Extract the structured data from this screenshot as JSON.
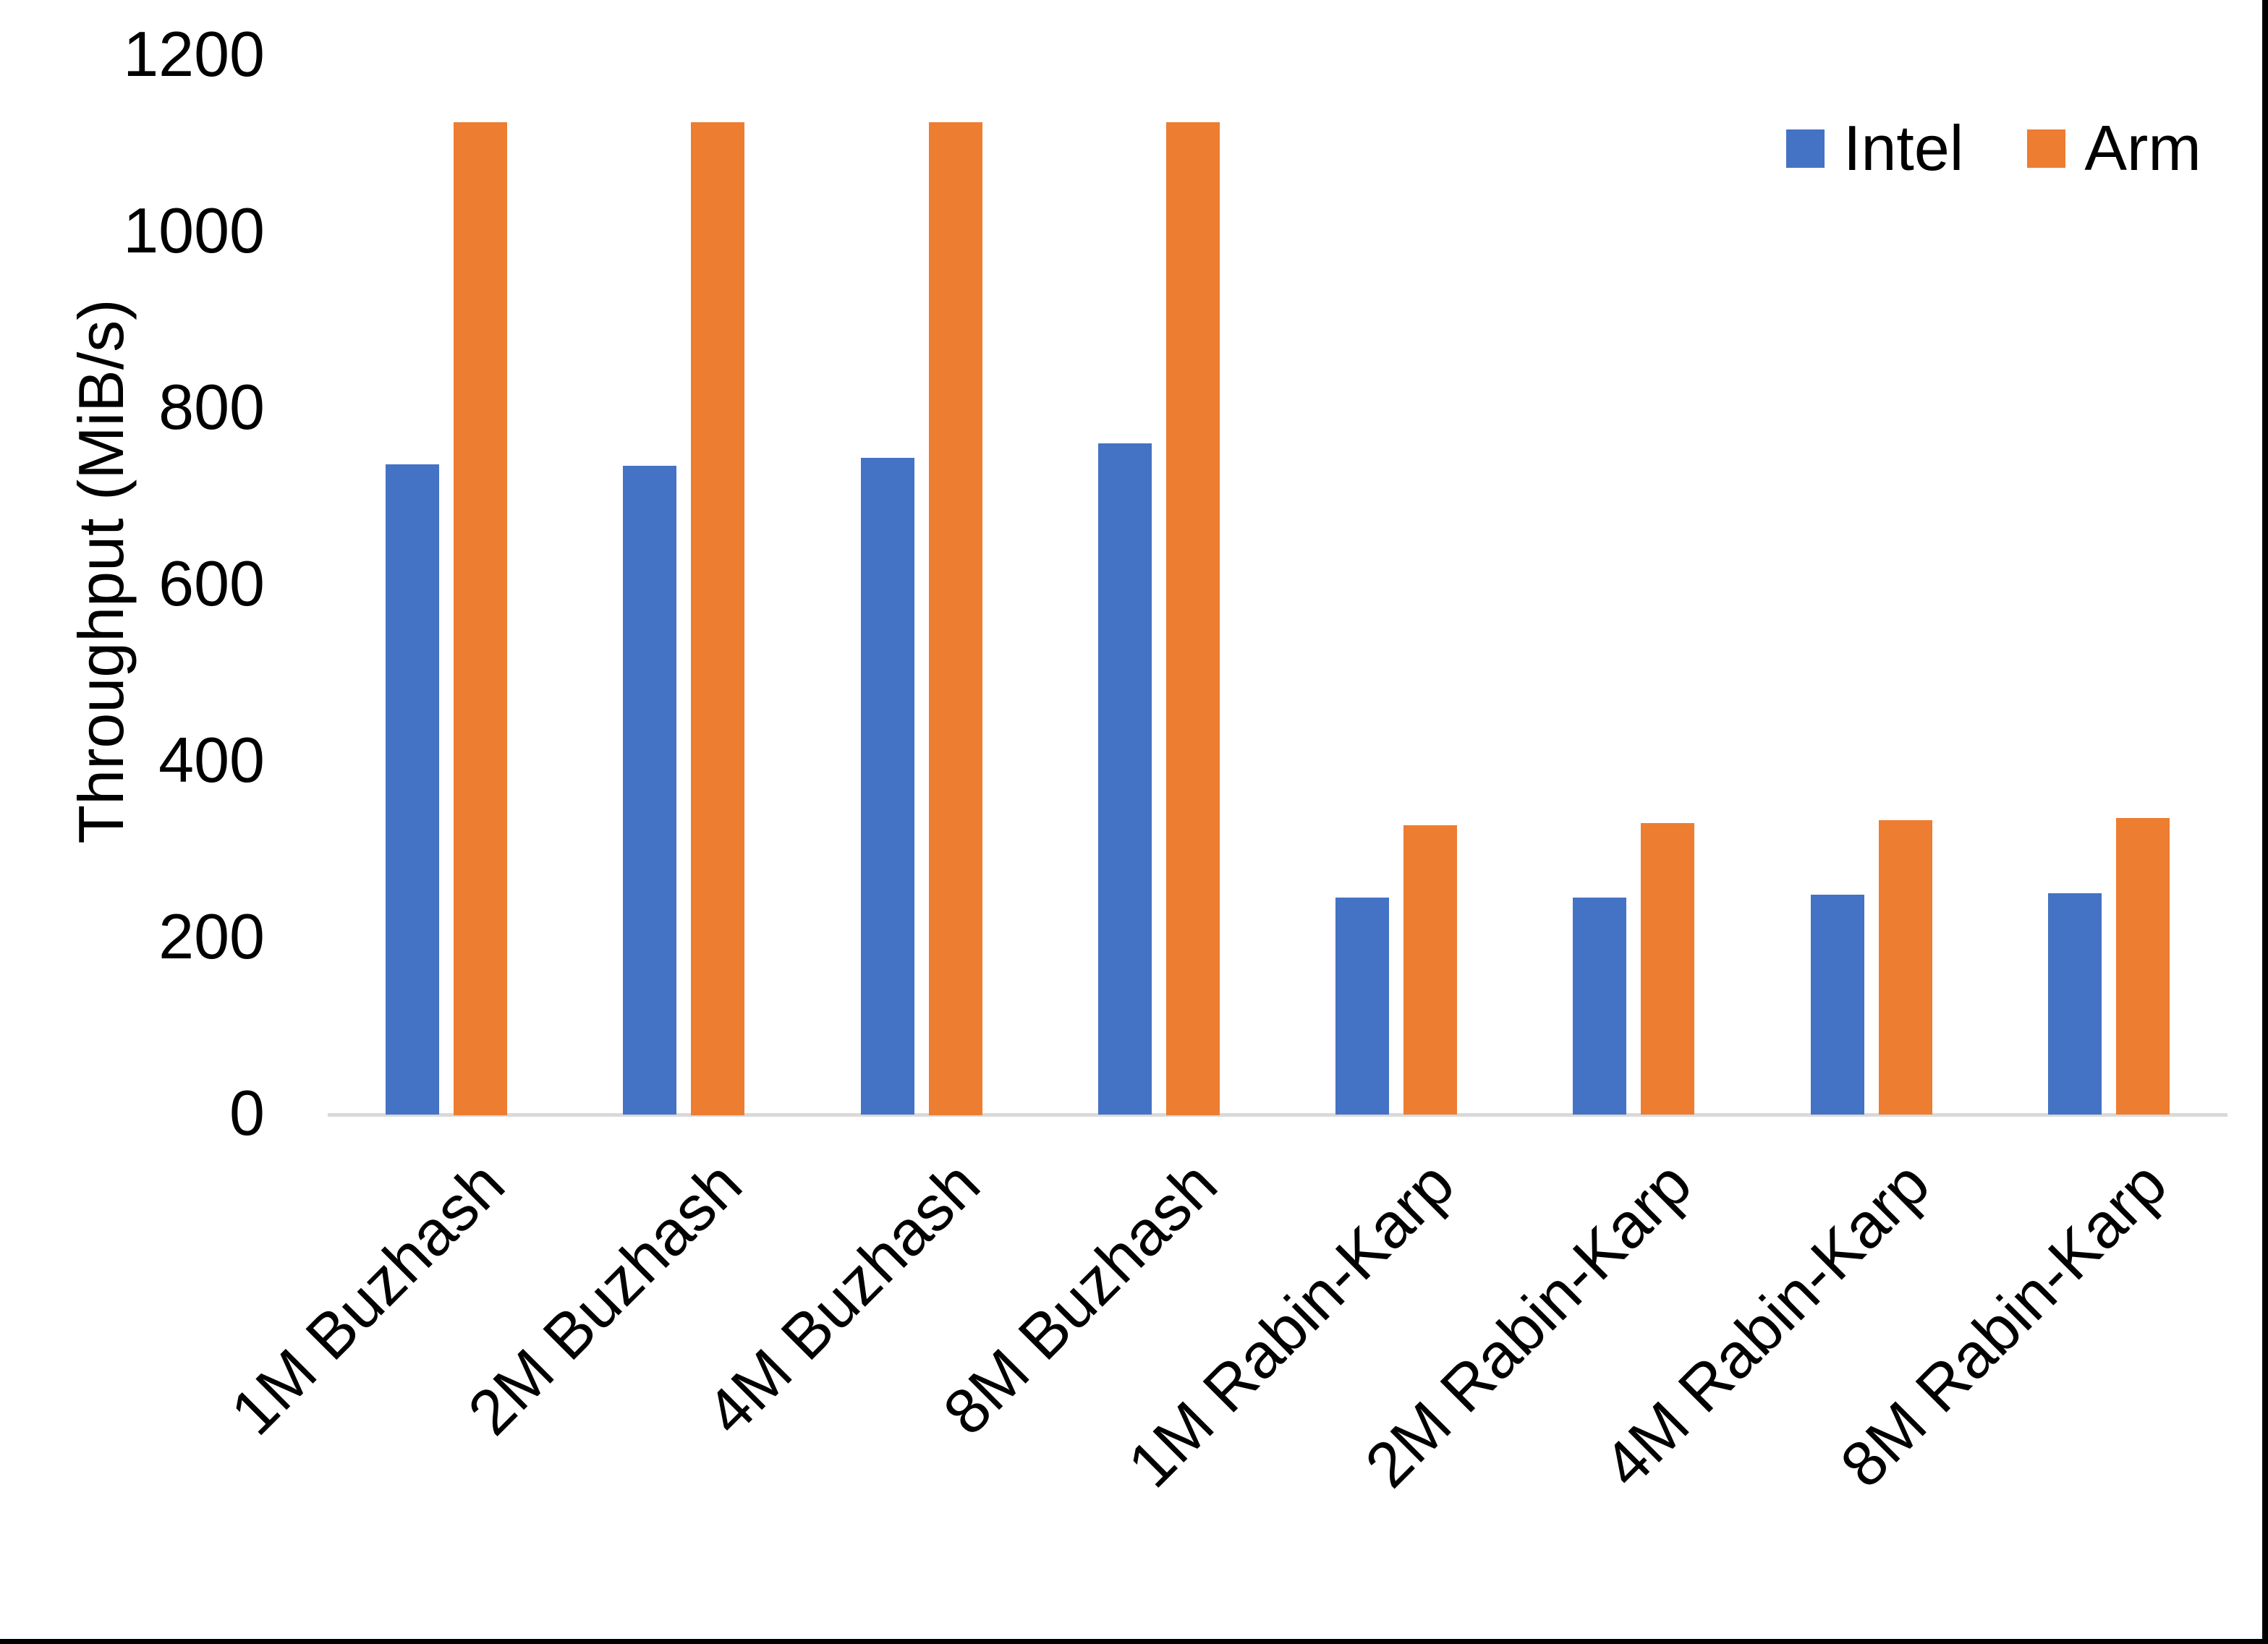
{
  "chart_data": {
    "type": "bar",
    "title": "",
    "xlabel": "",
    "ylabel": "Throughput (MiB/s)",
    "ylim": [
      0,
      1200
    ],
    "yticks": [
      0,
      200,
      400,
      600,
      800,
      1000,
      1200
    ],
    "grid": false,
    "legend_position": "top-right",
    "categories": [
      "1M Buzhash",
      "2M Buzhash",
      "4M Buzhash",
      "8M Buzhash",
      "1M Rabin-Karp",
      "2M Rabin-Karp",
      "4M Rabin-Karp",
      "8M Rabin-Karp"
    ],
    "series": [
      {
        "name": "Intel",
        "color": "#4472C4",
        "values": [
          737,
          735,
          744,
          761,
          246,
          246,
          249,
          251
        ]
      },
      {
        "name": "Arm",
        "color": "#ED7D31",
        "values": [
          1125,
          1125,
          1125,
          1125,
          328,
          330,
          334,
          336
        ]
      }
    ],
    "axis_line_color": "#d9d9d9",
    "text_color": "#000000"
  }
}
